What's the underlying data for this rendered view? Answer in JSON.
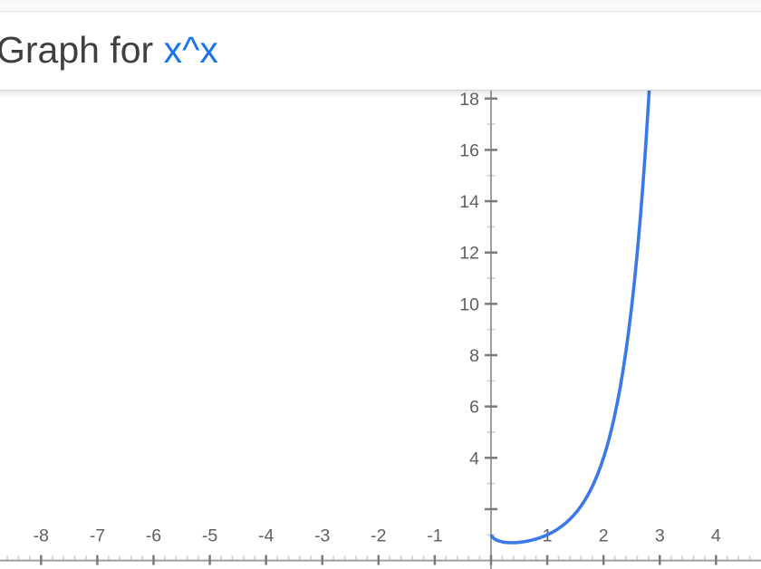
{
  "header": {
    "title_prefix": "Graph for ",
    "title_expression": "x^x"
  },
  "colors": {
    "title_text": "#3c4043",
    "title_expression": "#1a73e8",
    "axis": "#9e9e9e",
    "major_tick": "#7a7a7a",
    "minor_tick": "#d4d4d4",
    "tick_label": "#616161",
    "curve": "#3b78e8"
  },
  "chart_data": {
    "type": "line",
    "title": "Graph for x^x",
    "expression": "x^x",
    "grid": false,
    "legend": false,
    "x_range": [
      -8.73,
      4.8
    ],
    "y_range": [
      -0.332,
      18.31
    ],
    "x_minor_step": 0.2,
    "y_minor_ticks": [
      1,
      3,
      5,
      7,
      9,
      11,
      13,
      15,
      17
    ],
    "x_major_ticks": [
      {
        "v": -8,
        "label": "-8"
      },
      {
        "v": -7,
        "label": "-7"
      },
      {
        "v": -6,
        "label": "-6"
      },
      {
        "v": -5,
        "label": "-5"
      },
      {
        "v": -4,
        "label": "-4"
      },
      {
        "v": -3,
        "label": "-3"
      },
      {
        "v": -2,
        "label": "-2"
      },
      {
        "v": -1,
        "label": "-1"
      },
      {
        "v": 0,
        "label": ""
      },
      {
        "v": 1,
        "label": "1"
      },
      {
        "v": 2,
        "label": "2"
      },
      {
        "v": 3,
        "label": "3"
      },
      {
        "v": 4,
        "label": "4"
      }
    ],
    "y_major_ticks": [
      {
        "v": 2,
        "label": ""
      },
      {
        "v": 4,
        "label": "4"
      },
      {
        "v": 6,
        "label": "6"
      },
      {
        "v": 8,
        "label": "8"
      },
      {
        "v": 10,
        "label": "10"
      },
      {
        "v": 12,
        "label": "12"
      },
      {
        "v": 14,
        "label": "14"
      },
      {
        "v": 16,
        "label": "16"
      },
      {
        "v": 18,
        "label": "18"
      }
    ],
    "series": [
      {
        "name": "x^x",
        "points": [
          [
            0.01,
            0.955
          ],
          [
            0.03,
            0.9
          ],
          [
            0.05,
            0.861
          ],
          [
            0.08,
            0.817
          ],
          [
            0.1,
            0.794
          ],
          [
            0.15,
            0.752
          ],
          [
            0.2,
            0.725
          ],
          [
            0.25,
            0.707
          ],
          [
            0.3,
            0.697
          ],
          [
            0.35,
            0.692
          ],
          [
            0.368,
            0.692
          ],
          [
            0.4,
            0.693
          ],
          [
            0.45,
            0.698
          ],
          [
            0.5,
            0.707
          ],
          [
            0.55,
            0.72
          ],
          [
            0.6,
            0.736
          ],
          [
            0.65,
            0.756
          ],
          [
            0.7,
            0.779
          ],
          [
            0.75,
            0.806
          ],
          [
            0.8,
            0.836
          ],
          [
            0.85,
            0.871
          ],
          [
            0.9,
            0.91
          ],
          [
            0.95,
            0.952
          ],
          [
            1.0,
            1.0
          ],
          [
            1.05,
            1.053
          ],
          [
            1.1,
            1.111
          ],
          [
            1.15,
            1.174
          ],
          [
            1.2,
            1.245
          ],
          [
            1.25,
            1.322
          ],
          [
            1.3,
            1.407
          ],
          [
            1.35,
            1.5
          ],
          [
            1.4,
            1.602
          ],
          [
            1.45,
            1.714
          ],
          [
            1.5,
            1.837
          ],
          [
            1.55,
            1.972
          ],
          [
            1.6,
            2.121
          ],
          [
            1.65,
            2.285
          ],
          [
            1.7,
            2.465
          ],
          [
            1.75,
            2.663
          ],
          [
            1.8,
            2.881
          ],
          [
            1.85,
            3.121
          ],
          [
            1.9,
            3.386
          ],
          [
            1.95,
            3.678
          ],
          [
            2.0,
            4.0
          ],
          [
            2.05,
            4.356
          ],
          [
            2.1,
            4.75
          ],
          [
            2.15,
            5.185
          ],
          [
            2.2,
            5.667
          ],
          [
            2.25,
            6.2
          ],
          [
            2.3,
            6.791
          ],
          [
            2.35,
            7.447
          ],
          [
            2.4,
            8.176
          ],
          [
            2.45,
            8.984
          ],
          [
            2.5,
            9.882
          ],
          [
            2.55,
            10.882
          ],
          [
            2.6,
            11.993
          ],
          [
            2.65,
            13.233
          ],
          [
            2.7,
            14.613
          ],
          [
            2.75,
            16.15
          ],
          [
            2.8,
            17.87
          ],
          [
            2.85,
            19.783
          ]
        ]
      }
    ]
  }
}
